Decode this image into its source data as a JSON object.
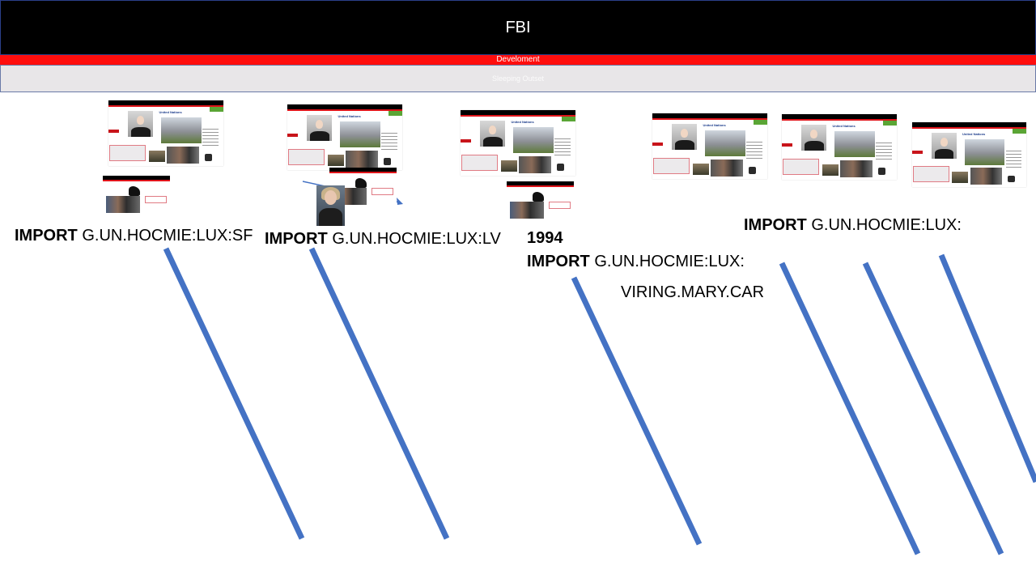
{
  "header": {
    "title": "FBI"
  },
  "red_banner": {
    "text": "Develoment"
  },
  "gray_banner": {
    "text": "Sleeping Outset"
  },
  "thumbnail": {
    "un_text": "United Nations"
  },
  "labels": [
    {
      "keyword": "IMPORT",
      "text": "G.UN.HOCMIE:LUX:SF"
    },
    {
      "keyword": "IMPORT",
      "text": "G.UN.HOCMIE:LUX:LV"
    },
    {
      "year": "1994",
      "keyword": "IMPORT",
      "text": "G.UN.HOCMIE:LUX:",
      "subtext": "VIRING.MARY.CAR"
    },
    {
      "keyword": "IMPORT",
      "text": "G.UN.HOCMIE:LUX:"
    }
  ],
  "colors": {
    "header_bg": "#000000",
    "banner_red": "#ff0d0d",
    "banner_gray": "#e8e6e8",
    "line_blue": "#4472c4"
  }
}
